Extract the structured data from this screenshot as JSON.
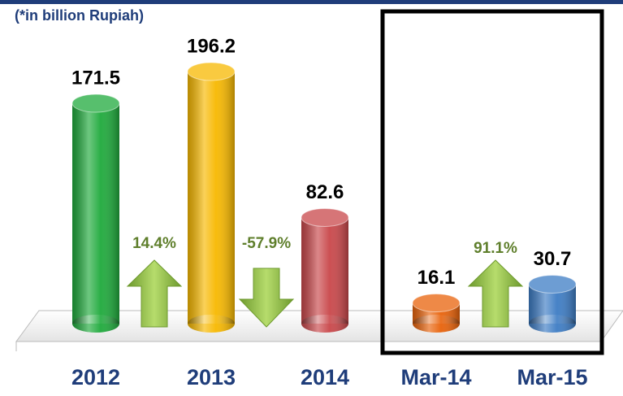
{
  "chart_data": {
    "type": "bar",
    "subtitle": "(*in billion Rupiah)",
    "categories": [
      "2012",
      "2013",
      "2014",
      "Mar-14",
      "Mar-15"
    ],
    "values": [
      171.5,
      196.2,
      82.6,
      16.1,
      30.7
    ],
    "colors": [
      "#1faa3c",
      "#f7b800",
      "#c9474a",
      "#e8620a",
      "#3d7cc4"
    ],
    "annotations": [
      {
        "text": "14.4%",
        "direction": "up"
      },
      {
        "text": "-57.9%",
        "direction": "down"
      },
      {
        "text": "91.1%",
        "direction": "up"
      }
    ]
  }
}
